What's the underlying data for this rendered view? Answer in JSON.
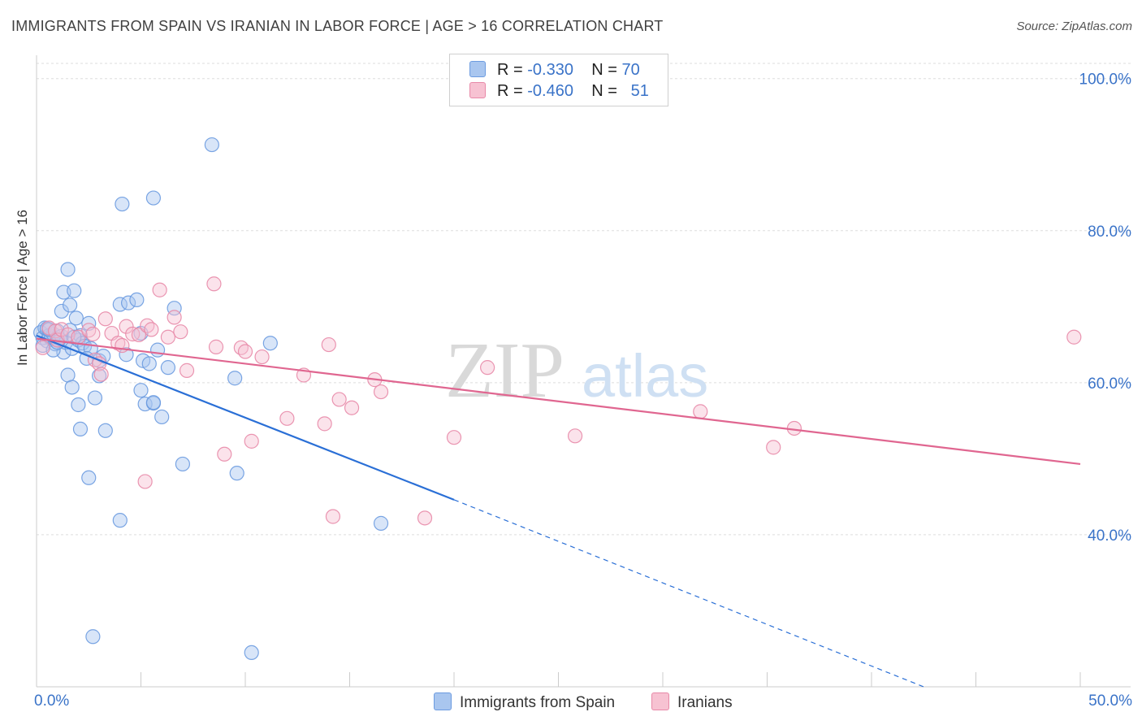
{
  "title": "IMMIGRANTS FROM SPAIN VS IRANIAN IN LABOR FORCE | AGE > 16 CORRELATION CHART",
  "source": "Source: ZipAtlas.com",
  "watermark": {
    "zip": "ZIP",
    "atlas": "atlas"
  },
  "legend": {
    "rows": [
      {
        "r_label": "R = ",
        "r_value": "-0.330",
        "n_label": "N = ",
        "n_value": "70",
        "color": "#a9c6ef",
        "border": "#6c9be0"
      },
      {
        "r_label": "R = ",
        "r_value": "-0.460",
        "n_label": "N = ",
        "n_value": "51",
        "color": "#f7c2d2",
        "border": "#e889a8"
      }
    ]
  },
  "bottom_legend": [
    {
      "label": "Immigrants from Spain",
      "color": "#a9c6ef",
      "border": "#6c9be0"
    },
    {
      "label": "Iranians",
      "color": "#f7c2d2",
      "border": "#e889a8"
    }
  ],
  "chart_data": {
    "type": "scatter",
    "title": "IMMIGRANTS FROM SPAIN VS IRANIAN IN LABOR FORCE | AGE > 16 CORRELATION CHART",
    "xlabel": "",
    "ylabel": "In Labor Force | Age > 16",
    "xlim": [
      0,
      50
    ],
    "ylim": [
      20,
      102
    ],
    "x_tick_labels": [
      "0.0%",
      "50.0%"
    ],
    "y_ticks": [
      40,
      60,
      80,
      100
    ],
    "y_tick_labels": [
      "40.0%",
      "60.0%",
      "80.0%",
      "100.0%"
    ],
    "grid": true,
    "series": [
      {
        "name": "Immigrants from Spain",
        "color": "#6c9be0",
        "fill": "#a9c6ef",
        "trend": {
          "x0": 0.0,
          "y0": 66.2,
          "x1": 20.0,
          "y1": 44.6,
          "x_dash_end": 42.5,
          "y_dash_end": 20.0,
          "color": "#2a6fd6"
        },
        "points": [
          [
            0.2,
            66.6
          ],
          [
            0.3,
            65.9
          ],
          [
            0.4,
            67.2
          ],
          [
            0.5,
            65.5
          ],
          [
            0.6,
            66.2
          ],
          [
            0.7,
            65.8
          ],
          [
            0.8,
            66.4
          ],
          [
            0.9,
            65.1
          ],
          [
            1.0,
            66.8
          ],
          [
            1.1,
            65.7
          ],
          [
            0.3,
            64.9
          ],
          [
            0.5,
            67.1
          ],
          [
            1.2,
            66.1
          ],
          [
            1.3,
            64.0
          ],
          [
            1.4,
            65.3
          ],
          [
            1.6,
            66.9
          ],
          [
            1.7,
            64.5
          ],
          [
            1.9,
            68.5
          ],
          [
            2.0,
            65.6
          ],
          [
            2.1,
            66.2
          ],
          [
            1.2,
            69.4
          ],
          [
            1.3,
            71.9
          ],
          [
            1.6,
            70.2
          ],
          [
            1.8,
            72.1
          ],
          [
            1.5,
            74.9
          ],
          [
            2.2,
            65.2
          ],
          [
            2.3,
            64.8
          ],
          [
            2.5,
            67.8
          ],
          [
            2.6,
            64.5
          ],
          [
            3.0,
            62.9
          ],
          [
            1.5,
            61.0
          ],
          [
            1.7,
            59.4
          ],
          [
            2.0,
            57.1
          ],
          [
            2.1,
            53.9
          ],
          [
            2.8,
            58.0
          ],
          [
            3.0,
            60.9
          ],
          [
            3.2,
            63.5
          ],
          [
            3.3,
            53.7
          ],
          [
            2.5,
            47.5
          ],
          [
            4.0,
            70.3
          ],
          [
            4.1,
            83.5
          ],
          [
            4.3,
            63.7
          ],
          [
            4.4,
            70.5
          ],
          [
            4.8,
            70.9
          ],
          [
            5.0,
            66.5
          ],
          [
            5.1,
            62.9
          ],
          [
            5.0,
            59.0
          ],
          [
            5.2,
            57.2
          ],
          [
            5.4,
            62.5
          ],
          [
            5.6,
            57.3
          ],
          [
            5.6,
            84.3
          ],
          [
            5.8,
            64.3
          ],
          [
            6.0,
            55.5
          ],
          [
            6.3,
            62.0
          ],
          [
            6.6,
            69.8
          ],
          [
            7.0,
            49.3
          ],
          [
            8.4,
            91.3
          ],
          [
            9.5,
            60.6
          ],
          [
            9.6,
            48.1
          ],
          [
            11.2,
            65.2
          ],
          [
            4.0,
            41.9
          ],
          [
            16.5,
            41.5
          ],
          [
            2.7,
            26.6
          ],
          [
            10.3,
            24.5
          ],
          [
            0.8,
            64.3
          ],
          [
            1.8,
            66.0
          ],
          [
            2.4,
            63.2
          ],
          [
            0.6,
            67.0
          ],
          [
            1.0,
            65.3
          ],
          [
            5.6,
            57.4
          ]
        ]
      },
      {
        "name": "Iranians",
        "color": "#e889a8",
        "fill": "#f7c2d2",
        "trend": {
          "x0": 0.0,
          "y0": 65.8,
          "x1": 50.0,
          "y1": 49.3,
          "color": "#e06690"
        },
        "points": [
          [
            0.3,
            64.6
          ],
          [
            0.6,
            67.2
          ],
          [
            0.9,
            66.8
          ],
          [
            1.0,
            65.6
          ],
          [
            1.2,
            67.0
          ],
          [
            1.5,
            66.3
          ],
          [
            2.0,
            66.0
          ],
          [
            2.5,
            66.9
          ],
          [
            2.7,
            66.4
          ],
          [
            2.8,
            63.0
          ],
          [
            3.0,
            62.5
          ],
          [
            3.1,
            61.1
          ],
          [
            3.3,
            68.4
          ],
          [
            3.6,
            66.5
          ],
          [
            3.9,
            65.2
          ],
          [
            4.1,
            64.9
          ],
          [
            4.3,
            67.4
          ],
          [
            4.6,
            66.4
          ],
          [
            4.9,
            66.3
          ],
          [
            5.3,
            67.5
          ],
          [
            5.5,
            67.0
          ],
          [
            5.9,
            72.2
          ],
          [
            6.3,
            66.0
          ],
          [
            6.6,
            68.6
          ],
          [
            6.9,
            66.7
          ],
          [
            7.2,
            61.6
          ],
          [
            5.2,
            47.0
          ],
          [
            8.6,
            64.7
          ],
          [
            8.5,
            73.0
          ],
          [
            9.0,
            50.6
          ],
          [
            9.8,
            64.6
          ],
          [
            10.0,
            64.1
          ],
          [
            10.3,
            52.3
          ],
          [
            10.8,
            63.4
          ],
          [
            12.0,
            55.3
          ],
          [
            12.8,
            61.0
          ],
          [
            13.8,
            54.6
          ],
          [
            14.0,
            65.0
          ],
          [
            14.2,
            42.4
          ],
          [
            14.5,
            57.8
          ],
          [
            15.1,
            56.7
          ],
          [
            16.2,
            60.4
          ],
          [
            16.5,
            58.8
          ],
          [
            18.6,
            42.2
          ],
          [
            20.0,
            52.8
          ],
          [
            21.6,
            62.0
          ],
          [
            25.8,
            53.0
          ],
          [
            31.8,
            56.2
          ],
          [
            35.3,
            51.5
          ],
          [
            36.3,
            54.0
          ],
          [
            49.7,
            66.0
          ]
        ]
      }
    ]
  }
}
